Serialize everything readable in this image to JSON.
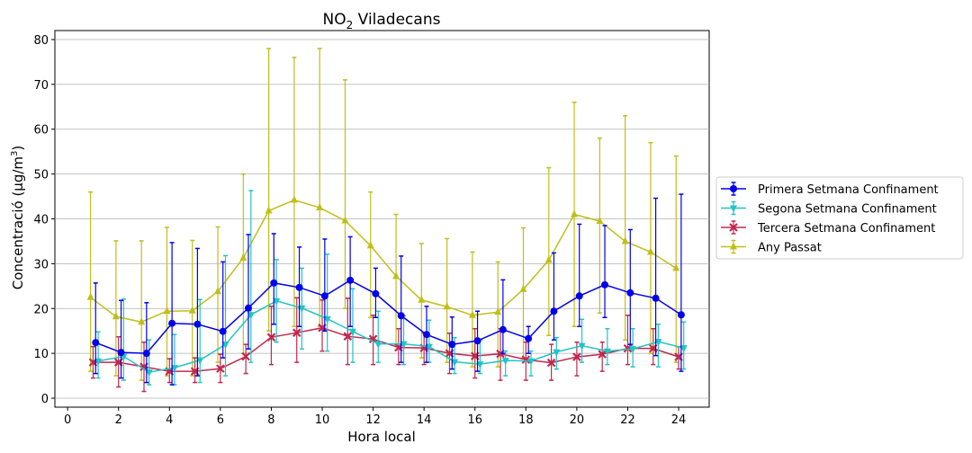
{
  "chart_data": {
    "type": "line",
    "title_main": "NO",
    "title_sub": "2",
    "title_rest": " Viladecans",
    "xlabel": "Hora local",
    "ylabel_main": "Concentració (µg/m",
    "ylabel_sup": "3",
    "ylabel_end": ")",
    "xlim": [
      -0.5,
      25.2
    ],
    "ylim": [
      -2,
      82
    ],
    "xticks": [
      0,
      2,
      4,
      6,
      8,
      10,
      12,
      14,
      16,
      18,
      20,
      22,
      24
    ],
    "yticks": [
      0,
      10,
      20,
      30,
      40,
      50,
      60,
      70,
      80
    ],
    "grid": "horizontal",
    "legend_position": "right",
    "series": [
      {
        "name": "Primera Setmana Confinament",
        "color": "#0000ee",
        "marker": "circle",
        "offset": 0.1,
        "x": [
          1,
          2,
          3,
          4,
          5,
          6,
          7,
          8,
          9,
          10,
          11,
          12,
          13,
          14,
          15,
          16,
          17,
          18,
          19,
          20,
          21,
          22,
          23,
          24
        ],
        "values": [
          12.4,
          10.2,
          10.0,
          16.7,
          16.5,
          14.9,
          20.1,
          25.7,
          24.7,
          22.8,
          26.3,
          23.3,
          18.4,
          14.2,
          12.0,
          12.8,
          15.3,
          13.3,
          19.4,
          22.8,
          25.3,
          23.5,
          22.3,
          18.6
        ],
        "err_low": [
          5.5,
          4.5,
          3.5,
          3.0,
          5.0,
          9.0,
          11.0,
          16.5,
          16.0,
          15.0,
          16.0,
          18.0,
          8.0,
          8.0,
          6.5,
          6.0,
          10.0,
          10.0,
          13.0,
          16.0,
          18.0,
          12.0,
          9.5,
          6.0
        ],
        "err_high": [
          25.7,
          21.8,
          21.3,
          34.7,
          33.4,
          30.4,
          36.5,
          36.7,
          33.7,
          35.5,
          36.0,
          29.0,
          31.7,
          20.5,
          18.1,
          19.4,
          26.4,
          16.0,
          32.4,
          38.8,
          38.5,
          37.6,
          44.6,
          45.5
        ]
      },
      {
        "name": "Segona Setmana Confinament",
        "color": "#22c4c4",
        "marker": "triangle-down",
        "offset": 0.2,
        "x": [
          1,
          2,
          3,
          4,
          5,
          6,
          7,
          8,
          9,
          10,
          11,
          12,
          13,
          14,
          15,
          16,
          17,
          18,
          19,
          20,
          21,
          22,
          23,
          24
        ],
        "values": [
          8.3,
          9.3,
          5.8,
          6.8,
          8.5,
          12.0,
          18.6,
          21.7,
          20.1,
          17.7,
          14.9,
          12.1,
          12.1,
          11.5,
          8.1,
          7.6,
          8.4,
          8.3,
          10.3,
          11.7,
          10.5,
          11.0,
          12.6,
          11.2
        ],
        "err_low": [
          4.5,
          4.0,
          3.0,
          3.0,
          3.5,
          5.0,
          8.0,
          12.5,
          11.0,
          10.5,
          8.0,
          8.0,
          7.5,
          8.0,
          5.5,
          5.5,
          5.0,
          5.0,
          6.5,
          8.0,
          7.5,
          7.0,
          7.0,
          6.5
        ],
        "err_high": [
          14.8,
          22.1,
          13.0,
          14.2,
          22.0,
          31.8,
          46.3,
          30.9,
          29.0,
          32.1,
          24.4,
          19.4,
          18.4,
          17.4,
          13.5,
          13.0,
          10.5,
          10.5,
          13.5,
          17.6,
          15.5,
          15.5,
          16.5,
          17.0
        ]
      },
      {
        "name": "Tercera Setmana Confinament",
        "color": "#c0284e",
        "marker": "x",
        "offset": 0.0,
        "x": [
          1,
          2,
          3,
          4,
          5,
          6,
          7,
          8,
          9,
          10,
          11,
          12,
          13,
          14,
          15,
          16,
          17,
          18,
          19,
          20,
          21,
          22,
          23,
          24
        ],
        "values": [
          8.0,
          8.0,
          7.0,
          6.0,
          6.0,
          6.6,
          9.3,
          13.6,
          14.6,
          15.7,
          13.8,
          13.2,
          11.3,
          11.2,
          10.0,
          9.4,
          9.9,
          8.6,
          7.9,
          9.2,
          9.8,
          11.1,
          11.1,
          9.2
        ],
        "err_low": [
          4.5,
          2.5,
          1.5,
          3.5,
          3.5,
          3.5,
          5.5,
          7.5,
          8.0,
          10.5,
          7.5,
          7.5,
          7.5,
          7.5,
          5.5,
          4.5,
          4.0,
          4.0,
          4.0,
          5.0,
          6.0,
          7.5,
          7.5,
          6.5
        ],
        "err_high": [
          11.5,
          13.7,
          12.5,
          8.8,
          9.0,
          9.8,
          12.0,
          20.5,
          22.4,
          21.9,
          22.3,
          18.5,
          15.5,
          14.5,
          14.5,
          15.5,
          15.5,
          12.5,
          12.0,
          12.5,
          12.5,
          18.5,
          15.5,
          11.5
        ]
      },
      {
        "name": "Any Passat",
        "color": "#bfbf1a",
        "marker": "triangle-up",
        "offset": -0.1,
        "x": [
          1,
          2,
          3,
          4,
          5,
          6,
          7,
          8,
          9,
          10,
          11,
          12,
          13,
          14,
          15,
          16,
          17,
          18,
          19,
          20,
          21,
          22,
          23,
          24
        ],
        "values": [
          22.5,
          18.2,
          17.0,
          19.4,
          19.5,
          23.8,
          31.3,
          41.8,
          44.2,
          42.5,
          39.6,
          34.0,
          27.2,
          21.9,
          20.4,
          18.5,
          19.2,
          24.3,
          30.8,
          41.0,
          39.5,
          35.0,
          32.6,
          29.0
        ],
        "err_low": [
          6.0,
          5.0,
          4.0,
          5.0,
          5.0,
          8.0,
          10.0,
          15.0,
          16.0,
          16.0,
          20.0,
          18.0,
          12.0,
          9.0,
          8.0,
          7.0,
          7.0,
          9.0,
          14.0,
          16.0,
          19.0,
          13.0,
          10.0,
          8.0
        ],
        "err_high": [
          46.0,
          35.1,
          35.1,
          38.1,
          35.2,
          38.2,
          50.0,
          78.0,
          76.0,
          78.0,
          71.0,
          46.0,
          41.0,
          34.5,
          35.6,
          32.6,
          30.4,
          38.0,
          51.4,
          66.0,
          58.0,
          63.0,
          57.0,
          54.0
        ]
      }
    ]
  }
}
